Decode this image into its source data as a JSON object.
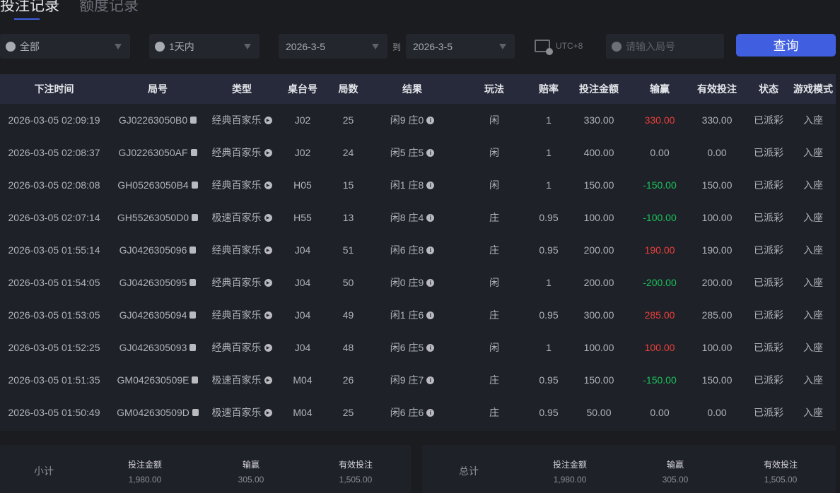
{
  "tabs": [
    {
      "label": "投注记录",
      "active": true
    },
    {
      "label": "额度记录",
      "active": false
    }
  ],
  "filters": {
    "game": "全部",
    "period": "1天内",
    "start_date": "2026-3-5",
    "to_label": "到",
    "end_date": "2026-3-5",
    "timezone": "UTC+8",
    "search_placeholder": "请输入局号",
    "query_label": "查询"
  },
  "colors": {
    "accent": "#3f5fe0",
    "win": "#e8403a",
    "loss": "#19c25a"
  },
  "table": {
    "headers": [
      "下注时间",
      "局号",
      "类型",
      "桌台号",
      "局数",
      "结果",
      "玩法",
      "赔率",
      "投注金额",
      "输赢",
      "有效投注",
      "状态",
      "游戏模式"
    ],
    "rows": [
      [
        "2026-03-05 02:09:19",
        "GJ02263050B0",
        "经典百家乐",
        "J02",
        "25",
        "闲9 庄0",
        "闲",
        "1",
        "330.00",
        "330.00",
        "330.00",
        "已派彩",
        "入座"
      ],
      [
        "2026-03-05 02:08:37",
        "GJ02263050AF",
        "经典百家乐",
        "J02",
        "24",
        "闲5 庄5",
        "闲",
        "1",
        "400.00",
        "0.00",
        "0.00",
        "已派彩",
        "入座"
      ],
      [
        "2026-03-05 02:08:08",
        "GH05263050B4",
        "经典百家乐",
        "H05",
        "15",
        "闲1 庄8",
        "闲",
        "1",
        "150.00",
        "-150.00",
        "150.00",
        "已派彩",
        "入座"
      ],
      [
        "2026-03-05 02:07:14",
        "GH55263050D0",
        "极速百家乐",
        "H55",
        "13",
        "闲8 庄4",
        "庄",
        "0.95",
        "100.00",
        "-100.00",
        "100.00",
        "已派彩",
        "入座"
      ],
      [
        "2026-03-05 01:55:14",
        "GJ0426305096",
        "经典百家乐",
        "J04",
        "51",
        "闲6 庄8",
        "庄",
        "0.95",
        "200.00",
        "190.00",
        "190.00",
        "已派彩",
        "入座"
      ],
      [
        "2026-03-05 01:54:05",
        "GJ0426305095",
        "经典百家乐",
        "J04",
        "50",
        "闲0 庄9",
        "闲",
        "1",
        "200.00",
        "-200.00",
        "200.00",
        "已派彩",
        "入座"
      ],
      [
        "2026-03-05 01:53:05",
        "GJ0426305094",
        "经典百家乐",
        "J04",
        "49",
        "闲1 庄6",
        "庄",
        "0.95",
        "300.00",
        "285.00",
        "285.00",
        "已派彩",
        "入座"
      ],
      [
        "2026-03-05 01:52:25",
        "GJ0426305093",
        "经典百家乐",
        "J04",
        "48",
        "闲6 庄5",
        "闲",
        "1",
        "100.00",
        "100.00",
        "100.00",
        "已派彩",
        "入座"
      ],
      [
        "2026-03-05 01:51:35",
        "GM042630509E",
        "极速百家乐",
        "M04",
        "26",
        "闲9 庄7",
        "庄",
        "0.95",
        "150.00",
        "-150.00",
        "150.00",
        "已派彩",
        "入座"
      ],
      [
        "2026-03-05 01:50:49",
        "GM042630509D",
        "极速百家乐",
        "M04",
        "25",
        "闲6 庄6",
        "庄",
        "0.95",
        "50.00",
        "0.00",
        "0.00",
        "已派彩",
        "入座"
      ]
    ]
  },
  "subtotal": {
    "label": "小计",
    "bet_label": "投注金额",
    "bet": "1,980.00",
    "winloss_label": "输赢",
    "winloss": "305.00",
    "valid_label": "有效投注",
    "valid": "1,505.00"
  },
  "total": {
    "label": "总计",
    "bet_label": "投注金额",
    "bet": "1,980.00",
    "winloss_label": "输赢",
    "winloss": "305.00",
    "valid_label": "有效投注",
    "valid": "1,505.00"
  }
}
